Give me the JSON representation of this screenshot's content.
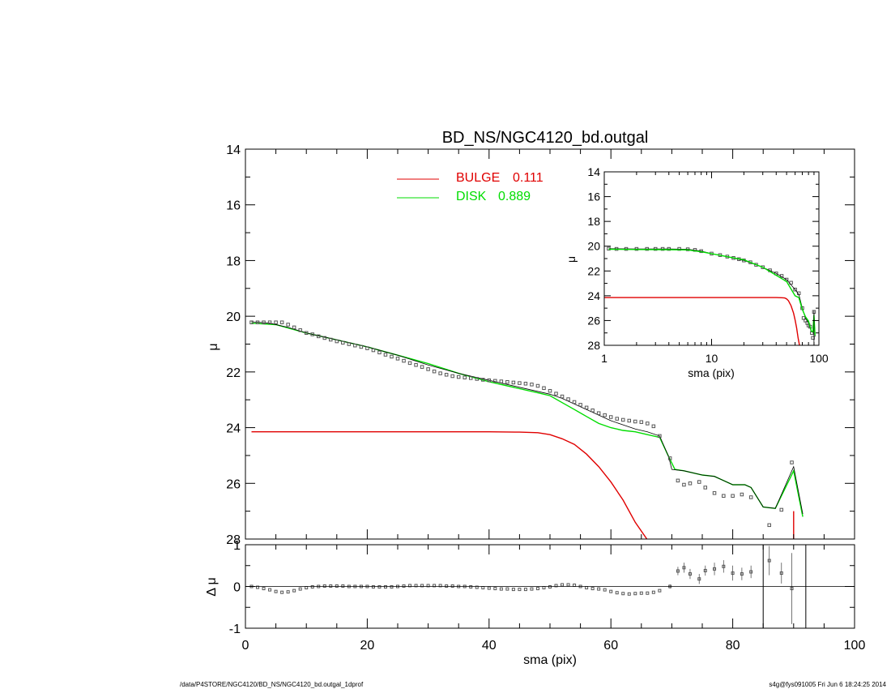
{
  "chart_data": [
    {
      "type": "scatter",
      "title": "BD_NS/NGC4120_bd.outgal",
      "xlabel": "",
      "ylabel": "μ",
      "xlim": [
        0,
        100
      ],
      "ylim": [
        28,
        14
      ],
      "y_inverted": true,
      "yticks": [
        14,
        16,
        18,
        20,
        22,
        24,
        26,
        28
      ],
      "legend": {
        "placement": "top-center",
        "entries": [
          {
            "label": "BULGE",
            "value": "0.111",
            "color": "#e00000"
          },
          {
            "label": "DISK",
            "value": "0.889",
            "color": "#00dd00"
          }
        ]
      },
      "series": [
        {
          "name": "BULGE",
          "kind": "line",
          "color": "#e00000",
          "x": [
            1,
            5,
            10,
            20,
            30,
            40,
            45,
            48,
            50,
            52,
            54,
            56,
            58,
            60,
            62,
            64,
            65.9
          ],
          "y": [
            24.15,
            24.15,
            24.15,
            24.15,
            24.15,
            24.15,
            24.16,
            24.18,
            24.25,
            24.4,
            24.6,
            24.95,
            25.4,
            25.95,
            26.6,
            27.4,
            28
          ]
        },
        {
          "name": "DISK",
          "kind": "line",
          "color": "#00dd00",
          "x": [
            1,
            5,
            10,
            15,
            20,
            25,
            30,
            35,
            40,
            45,
            48,
            50,
            52,
            54,
            56,
            58,
            60,
            62,
            64,
            66,
            68,
            69.5,
            70.5,
            72,
            75,
            77,
            80,
            82,
            83,
            85,
            87,
            90,
            91.5
          ],
          "y": [
            20.25,
            20.3,
            20.6,
            20.85,
            21.1,
            21.4,
            21.7,
            22.05,
            22.35,
            22.6,
            22.75,
            22.85,
            23.1,
            23.35,
            23.6,
            23.85,
            24.0,
            24.1,
            24.15,
            24.25,
            24.35,
            25.05,
            25.5,
            25.55,
            25.7,
            25.75,
            26.05,
            26.05,
            26.15,
            26.85,
            26.9,
            25.55,
            27.2
          ]
        },
        {
          "name": "",
          "kind": "line",
          "color": "#000000",
          "x": [
            1,
            4,
            7,
            10,
            15,
            20,
            25,
            30,
            35,
            40,
            45,
            50,
            52,
            54,
            56,
            58,
            60,
            62,
            64,
            66,
            68,
            69.5,
            70,
            72,
            75,
            77,
            80,
            82,
            83,
            85,
            87,
            90,
            91.5
          ],
          "y": [
            20.2,
            20.25,
            20.4,
            20.6,
            20.85,
            21.1,
            21.4,
            21.75,
            22.05,
            22.3,
            22.55,
            22.8,
            22.95,
            23.15,
            23.35,
            23.55,
            23.75,
            23.9,
            24.05,
            24.15,
            24.3,
            25.05,
            25.5,
            25.55,
            25.7,
            25.75,
            26.05,
            26.05,
            26.15,
            26.85,
            26.9,
            25.4,
            27.1
          ]
        },
        {
          "name": "",
          "kind": "points",
          "color": "#555555",
          "x": [
            1,
            2,
            3,
            4,
            5,
            6,
            7,
            8,
            9,
            10,
            11,
            12,
            13,
            14,
            15,
            16,
            17,
            18,
            19,
            20,
            21,
            22,
            23,
            24,
            25,
            26,
            27,
            28,
            29,
            30,
            31,
            32,
            33,
            34,
            35,
            36,
            37,
            38,
            39,
            40,
            41,
            42,
            43,
            44,
            45,
            46,
            47,
            48,
            49,
            50,
            51,
            52,
            53,
            54,
            55,
            56,
            57,
            58,
            59,
            60,
            61,
            62,
            63,
            64,
            65,
            66,
            67,
            68,
            69.7,
            71,
            72,
            73,
            74.5,
            75.5,
            77,
            78.5,
            80,
            81.5,
            83,
            86,
            88,
            89.7
          ],
          "y": [
            20.22,
            20.22,
            20.22,
            20.22,
            20.22,
            20.22,
            20.3,
            20.4,
            20.5,
            20.6,
            20.65,
            20.72,
            20.78,
            20.84,
            20.9,
            20.95,
            21.0,
            21.05,
            21.1,
            21.15,
            21.22,
            21.3,
            21.38,
            21.45,
            21.52,
            21.6,
            21.68,
            21.75,
            21.82,
            21.9,
            21.98,
            22.05,
            22.1,
            22.15,
            22.18,
            22.2,
            22.22,
            22.25,
            22.28,
            22.3,
            22.32,
            22.34,
            22.36,
            22.38,
            22.4,
            22.42,
            22.45,
            22.5,
            22.58,
            22.68,
            22.78,
            22.88,
            22.98,
            23.08,
            23.18,
            23.28,
            23.38,
            23.48,
            23.55,
            23.62,
            23.68,
            23.72,
            23.75,
            23.78,
            23.8,
            23.85,
            23.95,
            24.3,
            25.1,
            25.9,
            26.05,
            26.0,
            25.95,
            26.15,
            26.35,
            26.45,
            26.45,
            26.4,
            26.5,
            27.5,
            26.95,
            25.25
          ]
        },
        {
          "name": "",
          "kind": "line",
          "color": "#e00000",
          "x": [
            90,
            90
          ],
          "y": [
            27.0,
            28
          ]
        }
      ]
    },
    {
      "type": "scatter",
      "title": "",
      "xlabel": "sma (pix)",
      "ylabel": "Δ μ",
      "xlim": [
        0,
        100
      ],
      "ylim": [
        -1,
        1
      ],
      "yticks": [
        -1,
        0,
        1
      ],
      "xticks": [
        0,
        20,
        40,
        60,
        80,
        100
      ],
      "vertical_lines": [
        85,
        92
      ],
      "series": [
        {
          "name": "",
          "kind": "points",
          "color": "#555555",
          "x": [
            1,
            2,
            3,
            4,
            5,
            6,
            7,
            8,
            9,
            10,
            11,
            12,
            13,
            14,
            15,
            16,
            17,
            18,
            19,
            20,
            21,
            22,
            23,
            24,
            25,
            26,
            27,
            28,
            29,
            30,
            31,
            32,
            33,
            34,
            35,
            36,
            37,
            38,
            39,
            40,
            41,
            42,
            43,
            44,
            45,
            46,
            47,
            48,
            49,
            50,
            51,
            52,
            53,
            54,
            55,
            56,
            57,
            58,
            59,
            60,
            61,
            62,
            63,
            64,
            65,
            66,
            67,
            68,
            69.7,
            71,
            72,
            73,
            74.5,
            75.5,
            77,
            78.5,
            80,
            81.5,
            83,
            86,
            88,
            89.7
          ],
          "y": [
            0.0,
            -0.02,
            -0.05,
            -0.08,
            -0.12,
            -0.14,
            -0.13,
            -0.1,
            -0.06,
            -0.03,
            -0.01,
            0.0,
            0.01,
            0.01,
            0.01,
            0.01,
            0.0,
            0.0,
            0.0,
            0.0,
            -0.01,
            -0.01,
            -0.01,
            -0.01,
            0.0,
            0.01,
            0.02,
            0.02,
            0.02,
            0.02,
            0.02,
            0.02,
            0.01,
            0.01,
            0.0,
            0.0,
            -0.01,
            -0.02,
            -0.03,
            -0.04,
            -0.05,
            -0.06,
            -0.06,
            -0.07,
            -0.07,
            -0.07,
            -0.06,
            -0.05,
            -0.03,
            -0.01,
            0.02,
            0.04,
            0.04,
            0.03,
            0.0,
            -0.03,
            -0.05,
            -0.06,
            -0.08,
            -0.12,
            -0.15,
            -0.17,
            -0.18,
            -0.17,
            -0.16,
            -0.16,
            -0.14,
            -0.1,
            0.0,
            0.37,
            0.45,
            0.3,
            0.18,
            0.38,
            0.42,
            0.48,
            0.32,
            0.3,
            0.35,
            0.62,
            0.32,
            -0.05
          ],
          "err": [
            0,
            0,
            0,
            0,
            0,
            0,
            0,
            0,
            0,
            0,
            0,
            0,
            0,
            0,
            0,
            0,
            0,
            0,
            0,
            0,
            0,
            0,
            0,
            0,
            0,
            0,
            0,
            0,
            0,
            0,
            0,
            0,
            0,
            0,
            0,
            0,
            0,
            0,
            0,
            0,
            0,
            0,
            0,
            0,
            0,
            0,
            0,
            0,
            0,
            0,
            0,
            0,
            0,
            0,
            0,
            0,
            0,
            0,
            0,
            0,
            0,
            0,
            0,
            0,
            0,
            0,
            0,
            0,
            0.05,
            0.1,
            0.12,
            0.12,
            0.12,
            0.12,
            0.15,
            0.15,
            0.18,
            0.15,
            0.15,
            0.35,
            0.25,
            0.85
          ]
        },
        {
          "name": "",
          "kind": "line",
          "color": "#000000",
          "x": [
            0,
            100
          ],
          "y": [
            0,
            0
          ]
        }
      ]
    },
    {
      "type": "scatter",
      "title": "",
      "xlabel": "sma (pix)",
      "ylabel": "μ",
      "xscale": "log",
      "xlim": [
        1,
        100
      ],
      "xticks": [
        1,
        10,
        100
      ],
      "ylim": [
        28,
        14
      ],
      "yticks": [
        14,
        16,
        18,
        20,
        22,
        24,
        26,
        28
      ],
      "series": [
        {
          "name": "BULGE",
          "kind": "line",
          "color": "#e00000",
          "x": [
            1,
            5,
            10,
            20,
            30,
            40,
            45,
            48,
            50,
            52,
            55,
            58,
            60,
            62,
            64,
            65.9
          ],
          "y": [
            24.15,
            24.15,
            24.15,
            24.15,
            24.15,
            24.15,
            24.16,
            24.18,
            24.25,
            24.4,
            24.8,
            25.4,
            25.95,
            26.6,
            27.4,
            28
          ]
        },
        {
          "name": "",
          "kind": "points",
          "color": "#555555",
          "x": [
            1.1,
            1.3,
            1.6,
            2,
            2.5,
            3,
            3.5,
            4,
            5,
            6,
            7,
            8,
            10,
            12,
            14,
            16,
            18,
            20,
            23,
            26,
            30,
            35,
            40,
            45,
            50,
            55,
            60,
            65,
            70,
            72,
            75,
            78,
            80,
            83,
            86,
            88,
            90
          ],
          "y": [
            20.2,
            20.22,
            20.22,
            20.22,
            20.22,
            20.22,
            20.22,
            20.22,
            20.22,
            20.25,
            20.3,
            20.4,
            20.6,
            20.72,
            20.84,
            20.95,
            21.05,
            21.15,
            21.3,
            21.5,
            21.7,
            21.95,
            22.2,
            22.4,
            22.7,
            22.95,
            23.5,
            23.8,
            25.0,
            25.8,
            26.0,
            26.2,
            26.4,
            26.5,
            27.0,
            27.4,
            25.3
          ]
        },
        {
          "name": "",
          "kind": "line",
          "color": "#000000",
          "x": [
            1.1,
            2,
            4,
            6,
            8,
            10,
            14,
            20,
            30,
            40,
            50,
            60,
            65,
            70,
            75,
            80,
            85,
            88,
            90,
            92
          ],
          "y": [
            20.2,
            20.22,
            20.22,
            20.25,
            20.4,
            20.6,
            20.85,
            21.15,
            21.7,
            22.2,
            22.7,
            23.5,
            23.9,
            25.0,
            25.8,
            26.2,
            26.9,
            26.95,
            25.4,
            27.3
          ]
        },
        {
          "name": "DISK",
          "kind": "line",
          "color": "#00dd00",
          "x": [
            1.1,
            2,
            4,
            6,
            8,
            10,
            14,
            20,
            30,
            40,
            50,
            60,
            65,
            70,
            75,
            80,
            85,
            88,
            90,
            92
          ],
          "y": [
            20.25,
            20.27,
            20.28,
            20.3,
            20.45,
            20.6,
            20.85,
            21.1,
            21.7,
            22.35,
            22.85,
            24.0,
            24.15,
            25.1,
            25.7,
            26.05,
            26.85,
            26.9,
            25.55,
            27.2
          ]
        },
        {
          "name": "",
          "kind": "line",
          "color": "#000000",
          "x": [
            90,
            90
          ],
          "y": [
            25.2,
            28
          ]
        }
      ]
    }
  ],
  "footer": {
    "left": "/data/P4STORE/NGC4120/BD_NS/NGC4120_bd.outgal_1dprof",
    "right": "s4g@fys091005  Fri Jun  6 18:24:25 2014"
  }
}
